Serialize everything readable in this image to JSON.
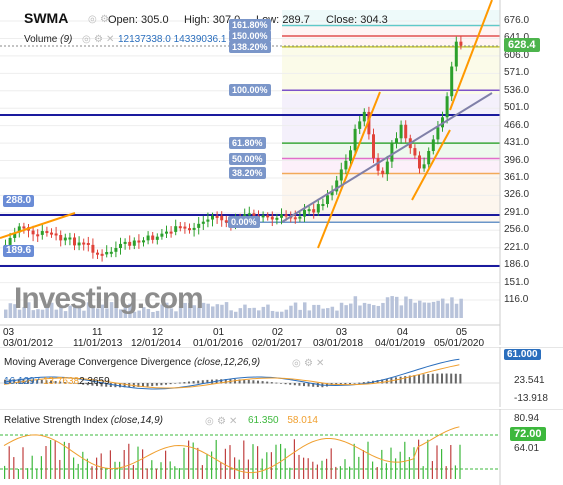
{
  "header": {
    "symbol": "SWMA",
    "open_label": "Open:",
    "open": "305.0",
    "high_label": "High:",
    "high": "307.0",
    "low_label": "Low:",
    "low": "289.7",
    "close_label": "Close:",
    "close": "304.3",
    "volume_label": "Volume",
    "volume_period": "(9)",
    "volume_values": "12137338.0 14339036.1"
  },
  "colors": {
    "candle_up": "#2ca02c",
    "candle_down": "#e0433a",
    "trendline": "#ff9900",
    "blue_level": "#1a1a9e",
    "current_price": "#4cb44c",
    "macd_value": "#2a6ebd",
    "rsi_value": "#3db83d"
  },
  "price_axis": [
    "676.0",
    "641.0",
    "606.0",
    "571.0",
    "536.0",
    "501.0",
    "466.0",
    "431.0",
    "396.0",
    "361.0",
    "326.0",
    "291.0",
    "256.0",
    "221.0",
    "186.0",
    "151.0",
    "116.0"
  ],
  "current_price": "628.4",
  "fib_levels": [
    {
      "label": "161.80%",
      "color": "#5fc9c9",
      "value": 667
    },
    {
      "label": "150.00%",
      "color": "#e05050",
      "value": 646
    },
    {
      "label": "138.20%",
      "color": "#c9c93a",
      "value": 624
    },
    {
      "label": "100.00%",
      "color": "#7d52c9",
      "value": 537
    },
    {
      "label": "61.80%",
      "color": "#3aa83a",
      "value": 431
    },
    {
      "label": "50.00%",
      "color": "#e070c9",
      "value": 400
    },
    {
      "label": "38.20%",
      "color": "#f2a95a",
      "value": 370
    },
    {
      "label": "0.00%",
      "color": "#6a96c9",
      "value": 272
    }
  ],
  "left_tags": {
    "top": "288.0",
    "bottom": "189.6"
  },
  "watermark": "Investing.com",
  "x_axis_top": [
    {
      "label": "03",
      "pos": 3
    },
    {
      "label": "11",
      "pos": 92
    },
    {
      "label": "12",
      "pos": 152
    },
    {
      "label": "01",
      "pos": 213
    },
    {
      "label": "02",
      "pos": 272
    },
    {
      "label": "03",
      "pos": 336
    },
    {
      "label": "04",
      "pos": 397
    },
    {
      "label": "05",
      "pos": 456
    }
  ],
  "x_axis_bottom": [
    {
      "label": "03/01/2012",
      "pos": 3
    },
    {
      "label": "11/01/2013",
      "pos": 73
    },
    {
      "label": "12/01/2014",
      "pos": 131
    },
    {
      "label": "01/01/2016",
      "pos": 193
    },
    {
      "label": "02/01/2017",
      "pos": 252
    },
    {
      "label": "03/01/2018",
      "pos": 313
    },
    {
      "label": "04/01/2019",
      "pos": 375
    },
    {
      "label": "05/01/2020",
      "pos": 434
    }
  ],
  "macd": {
    "title": "Moving Average Convergence Divergence",
    "params": "(close,12,26,9)",
    "value1": "16.1297",
    "value2": "13.7638",
    "value3": "2.3659",
    "axis": [
      "61.000",
      "23.541",
      "-13.918"
    ]
  },
  "rsi": {
    "title": "Relative Strength Index",
    "params": "(close,14,9)",
    "value1": "61.350",
    "value2": "58.014",
    "axis": [
      "80.94",
      "72.00",
      "64.01"
    ]
  }
}
